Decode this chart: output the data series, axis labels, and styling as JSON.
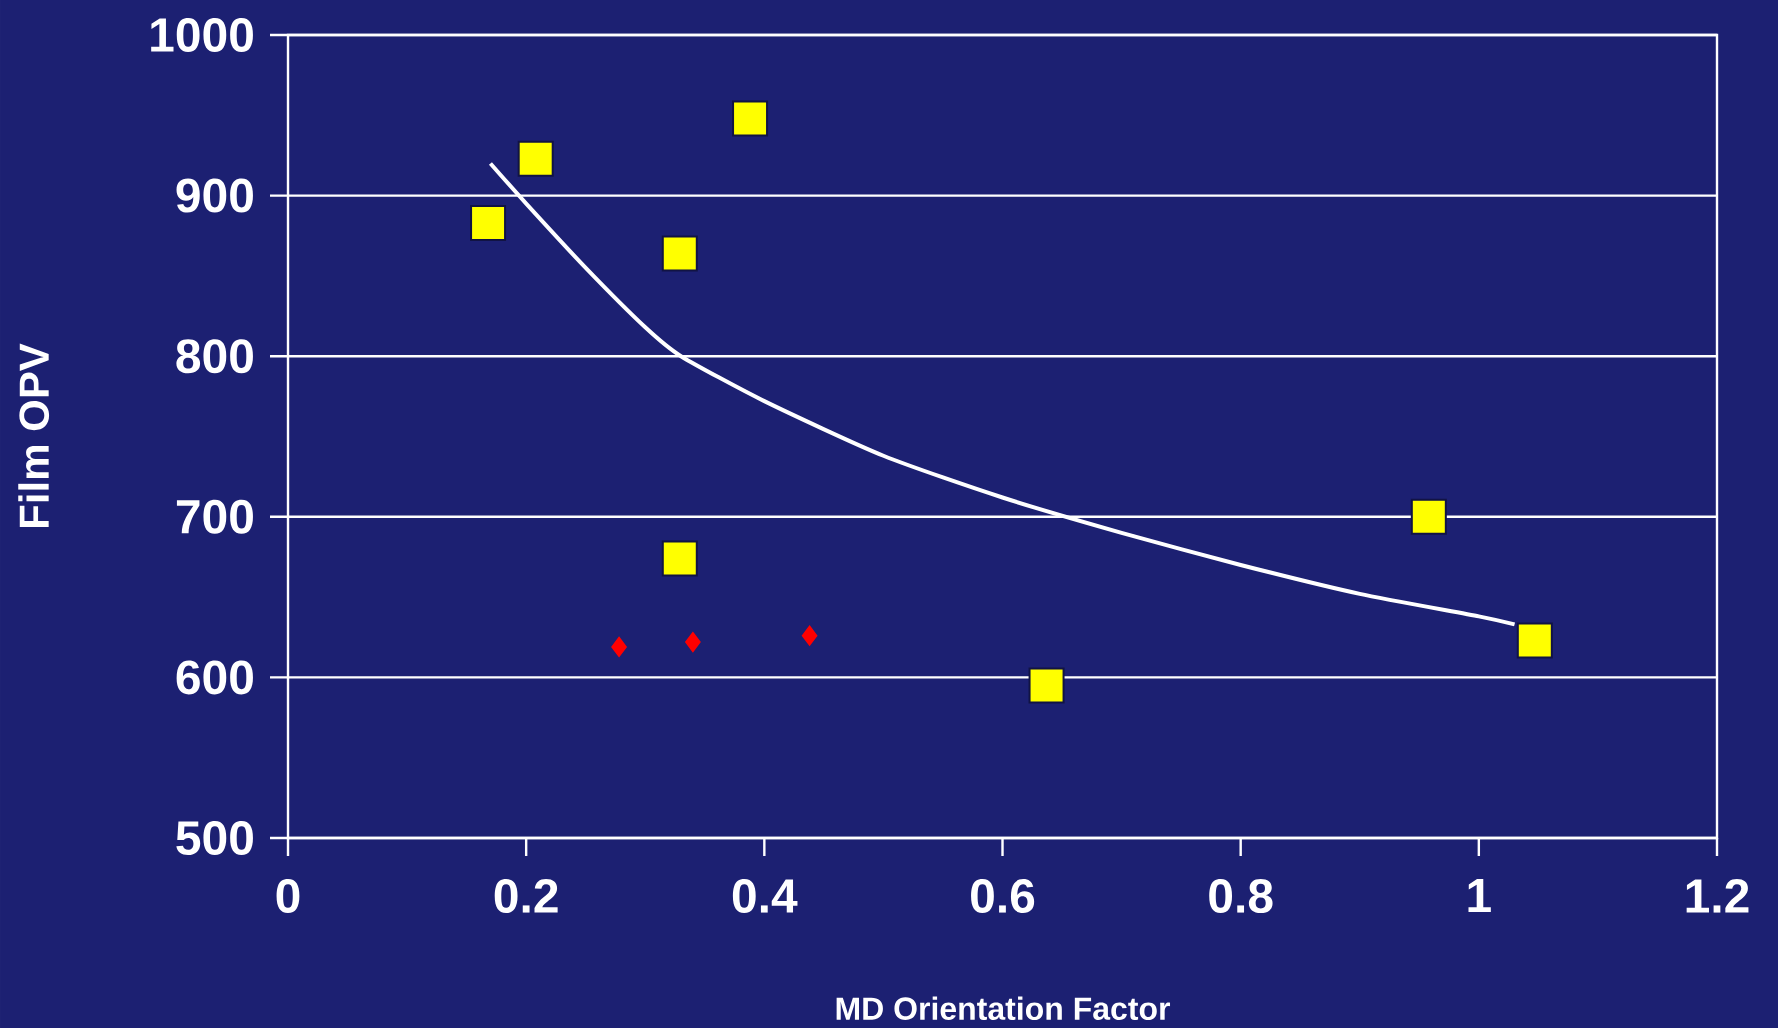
{
  "chart_data": {
    "type": "scatter",
    "xlabel": "MD Orientation Factor",
    "ylabel": "Film OPV",
    "xlim": [
      0,
      1.2
    ],
    "ylim": [
      500,
      1000
    ],
    "xticks": [
      0,
      0.2,
      0.4,
      0.6,
      0.8,
      1,
      1.2
    ],
    "yticks": [
      500,
      600,
      700,
      800,
      900,
      1000
    ],
    "grid": "y",
    "series": [
      {
        "marker": "square",
        "color": "#ffff00",
        "x": [
          0.168,
          0.208,
          0.388,
          0.329,
          0.329,
          0.637,
          0.958,
          1.047
        ],
        "values": [
          883,
          923,
          948,
          864,
          674,
          595,
          700,
          623
        ]
      },
      {
        "marker": "diamond",
        "color": "#ff0000",
        "x": [
          0.278,
          0.34,
          0.438
        ],
        "values": [
          619,
          622,
          626
        ]
      },
      {
        "type": "line",
        "marker": "none",
        "color": "#ffffff",
        "x": [
          0.17,
          0.2,
          0.25,
          0.3,
          0.33,
          0.4,
          0.5,
          0.6,
          0.7,
          0.8,
          0.9,
          1.0,
          1.03
        ],
        "values": [
          920,
          895,
          855,
          818,
          800,
          772,
          738,
          712,
          690,
          670,
          652,
          638,
          633
        ]
      }
    ]
  }
}
